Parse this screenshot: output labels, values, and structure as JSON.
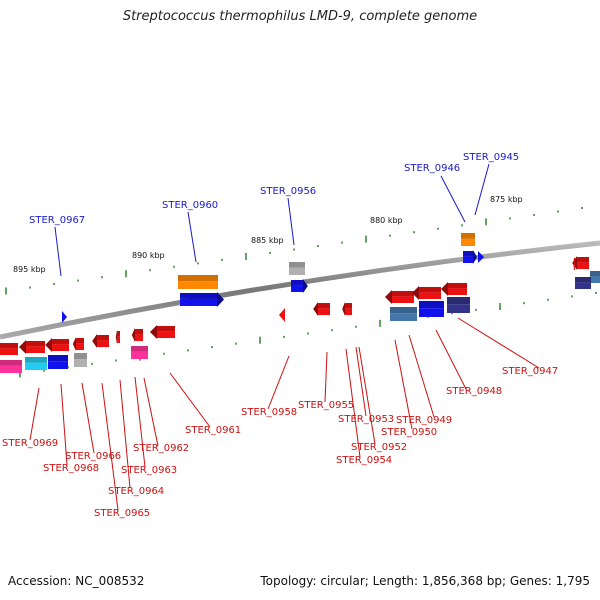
{
  "header": {
    "title": "Streptococcus thermophilus LMD-9, complete genome"
  },
  "footer": {
    "accession": "Accession: NC_008532",
    "topology": "Topology: circular; Length: 1,856,368 bp; Genes: 1,795"
  },
  "scale_labels": [
    "875 kbp",
    "880 kbp",
    "885 kbp",
    "890 kbp",
    "895 kbp"
  ],
  "forward_labels": [
    "STER_0945",
    "STER_0946",
    "STER_0956",
    "STER_0960",
    "STER_0967"
  ],
  "reverse_labels": [
    "STER_0947",
    "STER_0948",
    "STER_0949",
    "STER_0950",
    "STER_0952",
    "STER_0953",
    "STER_0954",
    "STER_0955",
    "STER_0958",
    "STER_0961",
    "STER_0962",
    "STER_0963",
    "STER_0964",
    "STER_0965",
    "STER_0966",
    "STER_0968",
    "STER_0969"
  ],
  "colors": {
    "forward_label": "#1a1acc",
    "reverse_label": "#cc1111",
    "backbone": "#8a8a8a",
    "tick": "#1e7a1e",
    "gene_red": "#ee1111",
    "gene_blue": "#1111ee",
    "gene_orange": "#ff8800",
    "gene_gray": "#b0b0b0",
    "gene_cyan": "#22ccee",
    "gene_pink": "#ff3399",
    "gene_navy": "#333388",
    "gene_steel": "#4477aa"
  }
}
